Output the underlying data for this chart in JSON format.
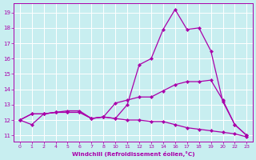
{
  "background_color": "#c8eef0",
  "grid_color": "#ffffff",
  "line_color": "#aa00aa",
  "xlabel": "Windchill (Refroidissement éolien,°C)",
  "x_tick_labels": [
    "0",
    "1",
    "2",
    "4",
    "5",
    "6",
    "7",
    "8",
    "10",
    "11",
    "12",
    "13",
    "14",
    "16",
    "17",
    "18",
    "19",
    "20",
    "22",
    "23"
  ],
  "y_ticks": [
    11,
    12,
    13,
    14,
    15,
    16,
    17,
    18,
    19
  ],
  "ylim": [
    10.6,
    19.6
  ],
  "series": [
    {
      "y": [
        12.0,
        11.7,
        12.4,
        12.5,
        12.6,
        12.6,
        12.1,
        12.2,
        12.1,
        12.0,
        12.0,
        11.9,
        11.9,
        11.7,
        11.5,
        11.4,
        11.3,
        11.2,
        11.1,
        10.9
      ]
    },
    {
      "y": [
        12.0,
        12.4,
        12.4,
        12.5,
        12.5,
        12.5,
        12.1,
        12.2,
        13.1,
        13.3,
        13.5,
        13.5,
        13.9,
        14.3,
        14.5,
        14.5,
        14.6,
        13.3,
        11.7,
        11.0
      ]
    },
    {
      "y": [
        12.0,
        12.4,
        12.4,
        12.5,
        12.5,
        12.5,
        12.1,
        12.2,
        12.1,
        13.0,
        15.6,
        16.0,
        17.9,
        19.2,
        17.9,
        18.0,
        16.5,
        13.2,
        11.7,
        11.0
      ]
    }
  ],
  "markersize": 2.5,
  "linewidth": 0.9
}
